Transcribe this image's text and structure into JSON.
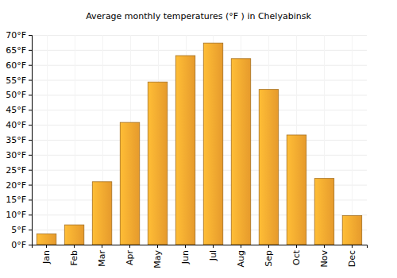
{
  "chart_data": {
    "type": "bar",
    "title": "Average monthly temperatures (°F ) in Chelyabinsk",
    "categories": [
      "Jan",
      "Feb",
      "Mar",
      "Apr",
      "May",
      "Jun",
      "Jul",
      "Aug",
      "Sep",
      "Oct",
      "Nov",
      "Dec"
    ],
    "values": [
      3.6,
      6.6,
      21,
      40.8,
      54.3,
      63.1,
      67.3,
      62.1,
      51.8,
      36.6,
      22.1,
      9.7
    ],
    "color": "#fba830",
    "ylim": [
      0,
      70
    ],
    "yticks": [
      {
        "value": 0,
        "label": "0°F"
      },
      {
        "value": 5,
        "label": "5°F"
      },
      {
        "value": 10,
        "label": "10°F"
      },
      {
        "value": 15,
        "label": "15°F"
      },
      {
        "value": 20,
        "label": "20°F"
      },
      {
        "value": 25,
        "label": "25°F"
      },
      {
        "value": 30,
        "label": "30°F"
      },
      {
        "value": 35,
        "label": "35°F"
      },
      {
        "value": 40,
        "label": "40°F"
      },
      {
        "value": 45,
        "label": "45°F"
      },
      {
        "value": 50,
        "label": "50°F"
      },
      {
        "value": 55,
        "label": "55°F"
      },
      {
        "value": 60,
        "label": "60°F"
      },
      {
        "value": 65,
        "label": "65°F"
      },
      {
        "value": 70,
        "label": "70°F"
      }
    ],
    "grid": true
  }
}
